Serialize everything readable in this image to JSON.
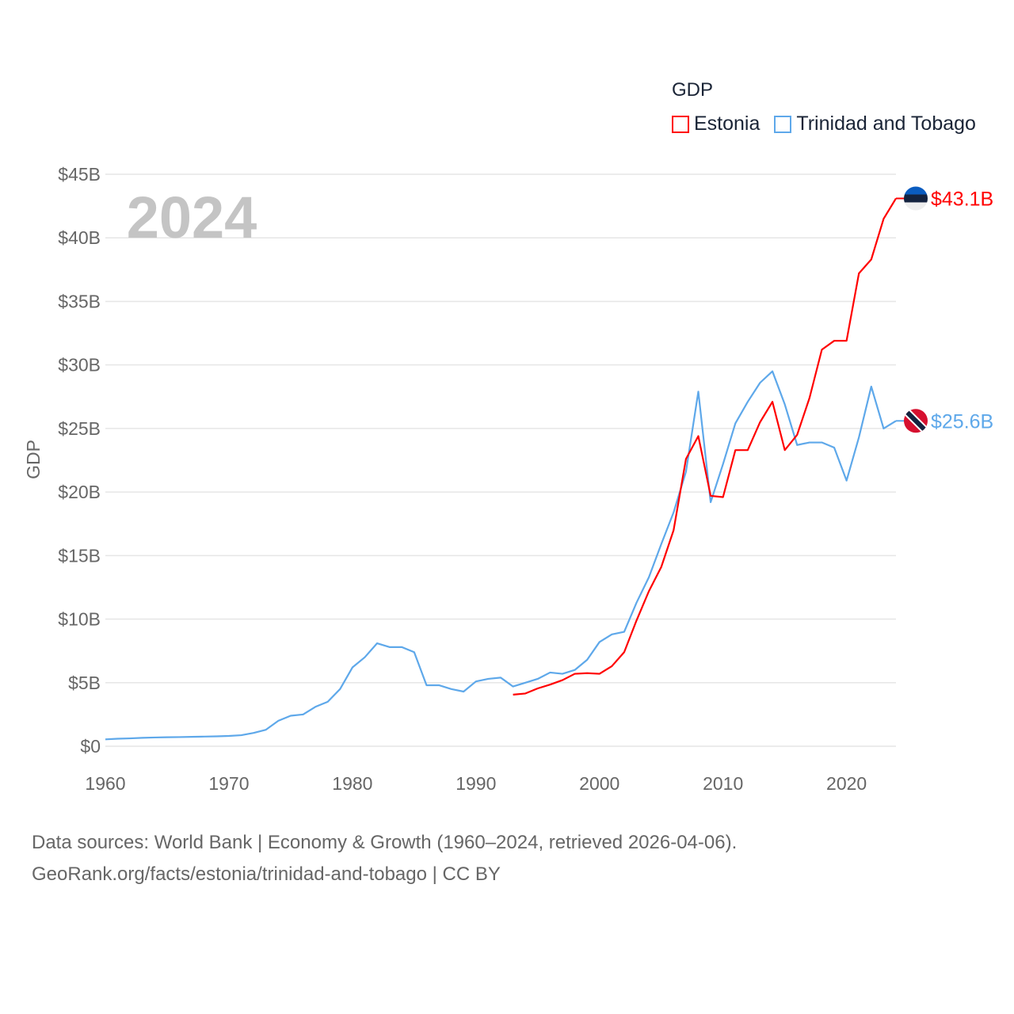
{
  "chart_data": {
    "type": "line",
    "title": "GDP",
    "ylabel": "GDP",
    "xlabel": "",
    "current_year_label": "2024",
    "xlim": [
      1960,
      2024
    ],
    "ylim": [
      0,
      45
    ],
    "x_ticks": [
      1960,
      1970,
      1980,
      1990,
      2000,
      2010,
      2020
    ],
    "x_tick_labels": [
      "1960",
      "1970",
      "1980",
      "1990",
      "2000",
      "2010",
      "2020"
    ],
    "y_ticks": [
      0,
      5,
      10,
      15,
      20,
      25,
      30,
      35,
      40,
      45
    ],
    "y_tick_labels": [
      "$0",
      "$5B",
      "$10B",
      "$15B",
      "$20B",
      "$25B",
      "$30B",
      "$35B",
      "$40B",
      "$45B"
    ],
    "grid": true,
    "legend_position": "top-right",
    "series": [
      {
        "name": "Estonia",
        "color": "#ff0000",
        "end_label": "$43.1B",
        "flag_icon": "estonia-flag",
        "start_year": 1993,
        "values": [
          4.06,
          4.15,
          4.55,
          4.85,
          5.2,
          5.7,
          5.75,
          5.7,
          6.3,
          7.4,
          9.9,
          12.2,
          14.1,
          17.0,
          22.6,
          24.4,
          19.7,
          19.6,
          23.3,
          23.3,
          25.5,
          27.1,
          23.3,
          24.5,
          27.4,
          31.2,
          31.9,
          31.9,
          37.2,
          38.3,
          41.5,
          43.1
        ]
      },
      {
        "name": "Trinidad and Tobago",
        "color": "#5ea8ea",
        "end_label": "$25.6B",
        "flag_icon": "trinidad-and-tobago-flag",
        "start_year": 1960,
        "values": [
          0.54,
          0.59,
          0.62,
          0.66,
          0.69,
          0.71,
          0.72,
          0.74,
          0.76,
          0.78,
          0.81,
          0.87,
          1.05,
          1.3,
          2.0,
          2.4,
          2.5,
          3.1,
          3.5,
          4.5,
          6.2,
          7.0,
          8.1,
          7.8,
          7.8,
          7.4,
          4.8,
          4.8,
          4.5,
          4.3,
          5.1,
          5.3,
          5.4,
          4.7,
          5.0,
          5.3,
          5.8,
          5.7,
          6.0,
          6.8,
          8.2,
          8.8,
          9.0,
          11.3,
          13.3,
          15.9,
          18.4,
          21.6,
          27.9,
          19.2,
          22.2,
          25.4,
          27.1,
          28.6,
          29.5,
          26.9,
          23.7,
          23.9,
          23.9,
          23.5,
          20.9,
          24.3,
          28.3,
          25.0,
          25.6
        ]
      }
    ]
  },
  "footer": {
    "line1": "Data sources: World Bank | Economy & Growth (1960–2024, retrieved 2026-04-06).",
    "line2": "GeoRank.org/facts/estonia/trinidad-and-tobago | CC BY"
  }
}
